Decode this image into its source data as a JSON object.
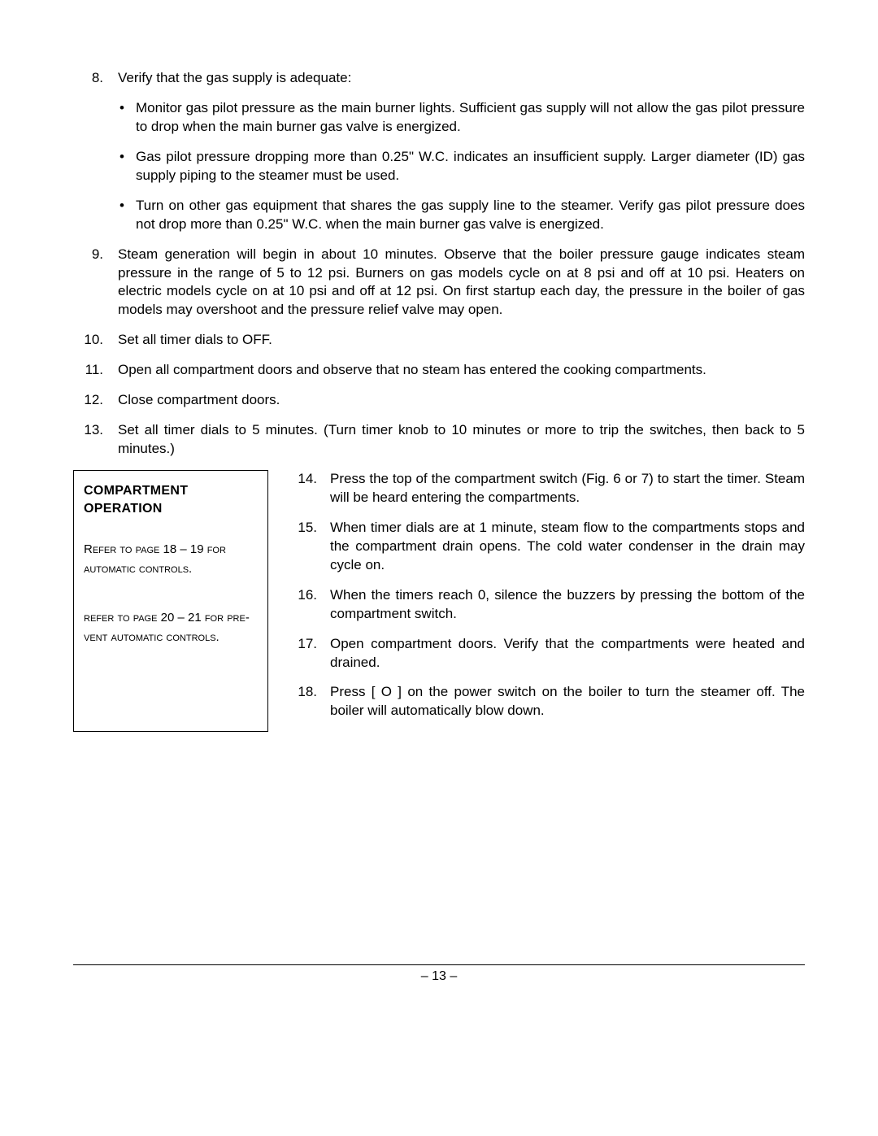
{
  "items": {
    "n8": "8.",
    "t8": "Verify that the gas supply is adequate:",
    "b8a": "Monitor gas pilot pressure as the main burner lights. Sufficient gas supply will not allow the gas pilot pressure to drop when the main burner gas valve is energized.",
    "b8b": "Gas pilot pressure dropping more than 0.25\" W.C. indicates an insufficient supply. Larger diameter (ID) gas supply piping to the steamer must be used.",
    "b8c": "Turn on other gas equipment that shares the gas supply line to the steamer.  Verify gas pilot pressure does not drop more than 0.25\" W.C. when the main burner gas valve is energized.",
    "n9": "9.",
    "t9": "Steam generation will begin in about 10 minutes. Observe that the boiler pressure gauge indicates steam pressure in the range of 5 to 12 psi.  Burners on gas models cycle on at 8 psi and off at 10 psi.  Heaters on electric models cycle on at 10 psi and off at 12 psi.  On first startup each day, the pressure in the boiler of gas models may overshoot and the pressure relief valve may open.",
    "n10": "10.",
    "t10": "Set all timer dials to OFF.",
    "n11": "11.",
    "t11": "Open all compartment doors and observe that no steam has entered the cooking compartments.",
    "n12": "12.",
    "t12": "Close compartment doors.",
    "n13": "13.",
    "t13": "Set all timer dials to 5 minutes. (Turn timer knob to 10 minutes or more to trip the switches, then back to 5 minutes.)",
    "n14": "14.",
    "t14": "Press the top of the compartment switch (Fig. 6 or 7) to start the timer.  Steam will be heard entering the compartments.",
    "n15": "15.",
    "t15": "When timer dials are at 1 minute, steam flow to the compartments stops and the compartment drain opens.  The cold water condenser in the drain may cycle on.",
    "n16": "16.",
    "t16": "When the timers reach 0, silence the buzzers by pressing the bottom of the compartment switch.",
    "n17": "17.",
    "t17": "Open compartment doors.  Verify that the compartments were heated and drained.",
    "n18": "18.",
    "t18": " Press [ O ] on the power switch on the boiler to turn the steamer off.  The boiler will automatically blow down."
  },
  "sidebar": {
    "title": "COMPARTMENT OPERATION",
    "ref1": "Refer to page 18 – 19 for automatic controls.",
    "ref2": "refer to page 20 – 21 for pre-vent automatic controls."
  },
  "bullet_glyph": "•",
  "page_number": "– 13 –"
}
